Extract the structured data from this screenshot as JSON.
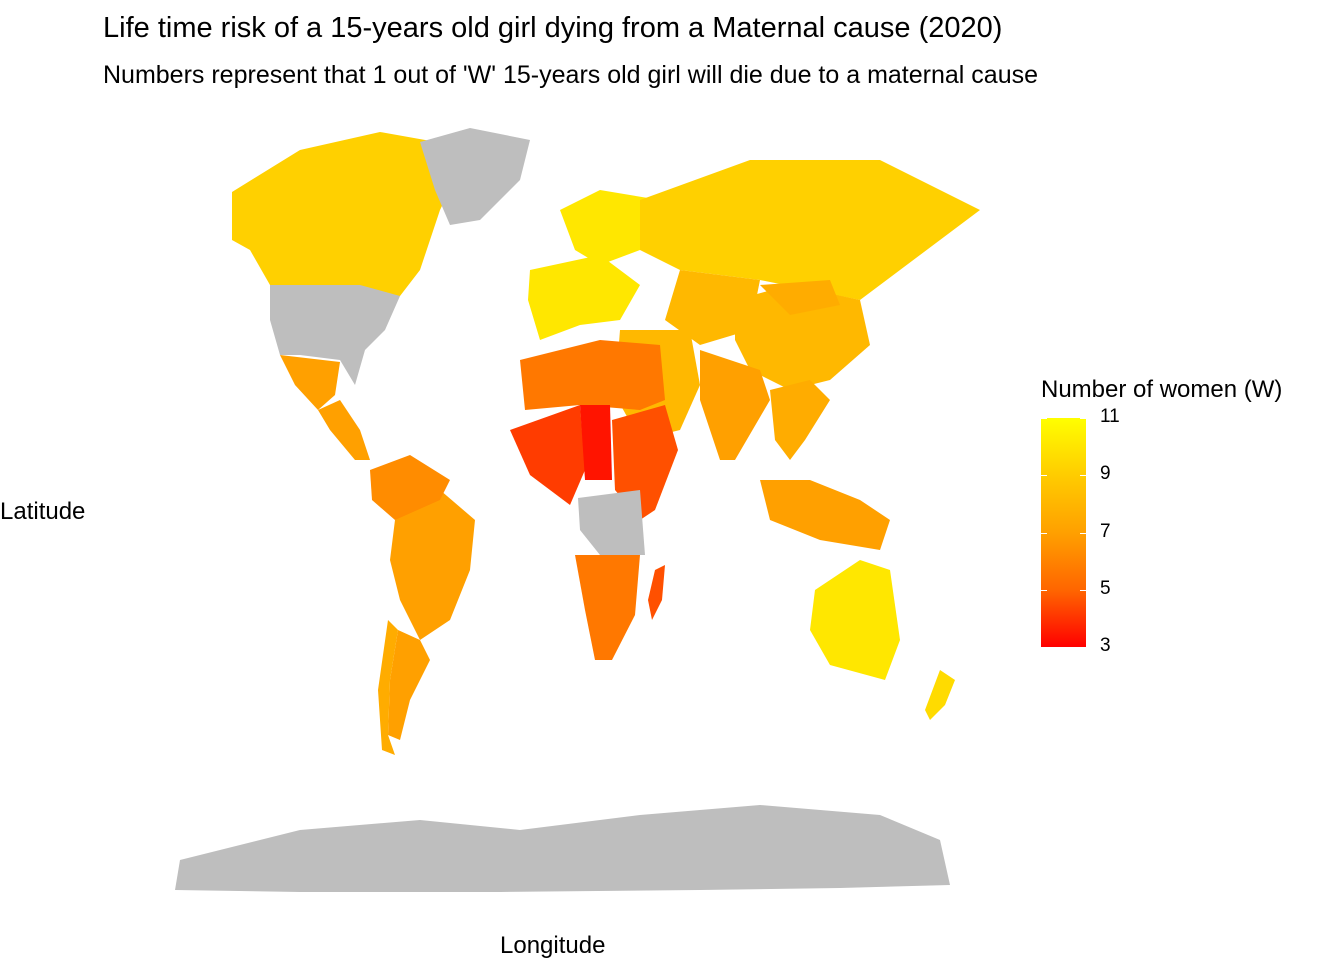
{
  "title": "Life time risk of a 15-years old girl dying from a Maternal cause (2020)",
  "subtitle": "Numbers represent that 1 out of 'W' 15-years old girl will die due to a maternal cause",
  "axes": {
    "x_label": "Longitude",
    "y_label": "Latitude"
  },
  "legend": {
    "title": "Number of women (W)",
    "min": 3,
    "max": 11,
    "ticks": [
      11,
      9,
      7,
      5,
      3
    ],
    "tick_labels": [
      "11",
      "9",
      "7",
      "5",
      "3"
    ]
  },
  "colors": {
    "low": "#ff0000",
    "mid": "#ffa000",
    "high": "#ffff00",
    "no_data": "#bebebe"
  },
  "chart_data": {
    "type": "choropleth",
    "title": "Life time risk of a 15-years old girl dying from a Maternal cause (2020)",
    "variable": "Number of women (W)",
    "scale_range": [
      3,
      11
    ],
    "regions": [
      {
        "name": "Canada",
        "value": 9
      },
      {
        "name": "Greenland",
        "value": null
      },
      {
        "name": "United States",
        "value": null
      },
      {
        "name": "Mexico",
        "value": 7
      },
      {
        "name": "Central America",
        "value": 7
      },
      {
        "name": "Brazil",
        "value": 7
      },
      {
        "name": "Northern South America",
        "value": 6.5
      },
      {
        "name": "Argentina",
        "value": 7
      },
      {
        "name": "Chile",
        "value": 7.5
      },
      {
        "name": "Northern Europe",
        "value": 10
      },
      {
        "name": "Western Europe",
        "value": 10
      },
      {
        "name": "Russia",
        "value": 9
      },
      {
        "name": "China",
        "value": 8
      },
      {
        "name": "Mongolia",
        "value": 7.5
      },
      {
        "name": "Central Asia",
        "value": 8
      },
      {
        "name": "Middle East",
        "value": 8
      },
      {
        "name": "India",
        "value": 7
      },
      {
        "name": "Southeast Asia",
        "value": 7.5
      },
      {
        "name": "Indonesia",
        "value": 7
      },
      {
        "name": "Australia",
        "value": 10
      },
      {
        "name": "New Zealand",
        "value": 9.5
      },
      {
        "name": "North Africa",
        "value": 6
      },
      {
        "name": "West Africa",
        "value": 4.5
      },
      {
        "name": "Chad",
        "value": 3.5
      },
      {
        "name": "East Africa",
        "value": 5
      },
      {
        "name": "Central Africa",
        "value": null
      },
      {
        "name": "Southern Africa",
        "value": 6
      },
      {
        "name": "Madagascar",
        "value": 5
      },
      {
        "name": "Antarctica",
        "value": null
      }
    ]
  }
}
